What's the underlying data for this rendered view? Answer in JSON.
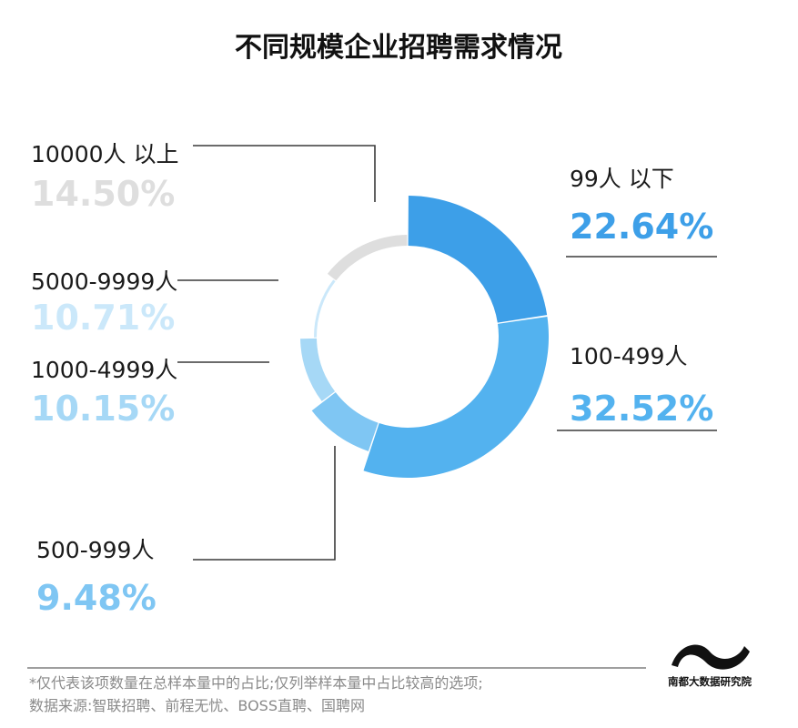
{
  "chart_data": {
    "type": "pie",
    "title": "不同规模企业招聘需求情况",
    "categories": [
      "99人以下",
      "100-499人",
      "500-999人",
      "1000-4999人",
      "5000-9999人",
      "10000人以上"
    ],
    "labels_display": [
      "99人 以下",
      "100-499人",
      "500-999人",
      "1000-4999人",
      "5000-9999人",
      "10000人 以上"
    ],
    "values": [
      22.64,
      32.52,
      9.48,
      10.15,
      10.71,
      14.5
    ],
    "value_labels": [
      "22.64%",
      "32.52%",
      "9.48%",
      "10.15%",
      "10.71%",
      "14.50%"
    ],
    "unit": "%",
    "colors": [
      "#3d9fe8",
      "#53b2ef",
      "#7fc6f3",
      "#a6d8f6",
      "#cbe8fa",
      "#dedede"
    ],
    "label_colors": [
      "#3d9fe8",
      "#53b2ef",
      "#7fc6f3",
      "#a6d8f6",
      "#cbe8fa",
      "#dedede"
    ],
    "start_angle": "12 o'clock",
    "direction": "clockwise",
    "legend": "none"
  },
  "footnote": {
    "line1": "*仅代表该项数量在总样本量中的占比;仅列举样本量中占比较高的选项;",
    "line2": "数据来源:智联招聘、前程无忧、BOSS直聘、国聘网"
  },
  "brand": {
    "name": "南都大数据研究院",
    "logo_icon": "wave-logo-icon"
  }
}
